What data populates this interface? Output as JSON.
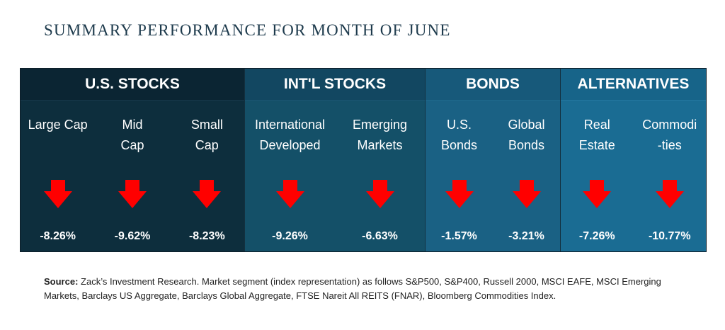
{
  "title": "SUMMARY PERFORMANCE FOR MONTH OF JUNE",
  "groups": [
    {
      "name": "U.S. STOCKS",
      "segments": [
        {
          "label": "Large Cap",
          "value": "-8.26%",
          "direction": "down"
        },
        {
          "label": "Mid\nCap",
          "value": "-9.62%",
          "direction": "down"
        },
        {
          "label": "Small\nCap",
          "value": "-8.23%",
          "direction": "down"
        }
      ]
    },
    {
      "name": "INT'L STOCKS",
      "segments": [
        {
          "label": "International\nDeveloped",
          "value": "-9.26%",
          "direction": "down"
        },
        {
          "label": "Emerging\nMarkets",
          "value": "-6.63%",
          "direction": "down"
        }
      ]
    },
    {
      "name": "BONDS",
      "segments": [
        {
          "label": "U.S.\nBonds",
          "value": "-1.57%",
          "direction": "down"
        },
        {
          "label": "Global\nBonds",
          "value": "-3.21%",
          "direction": "down"
        }
      ]
    },
    {
      "name": "ALTERNATIVES",
      "segments": [
        {
          "label": "Real\nEstate",
          "value": "-7.26%",
          "direction": "down"
        },
        {
          "label": "Commodi\n-ties",
          "value": "-10.77%",
          "direction": "down"
        }
      ]
    }
  ],
  "source": {
    "label": "Source:",
    "text": " Zack’s Investment Research. Market segment (index representation) as follows S&P500, S&P400, Russell 2000, MSCI EAFE, MSCI Emerging Markets, Barclays US Aggregate, Barclays Global Aggregate, FTSE Nareit All REITS (FNAR), Bloomberg Commodities Index."
  },
  "colors": {
    "arrow": "#ff0000",
    "title": "#1d3a4c"
  }
}
